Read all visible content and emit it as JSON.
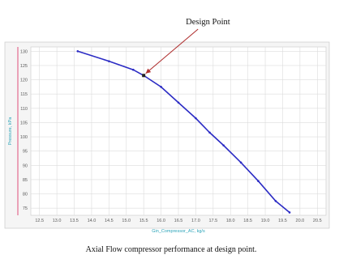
{
  "chart_data": {
    "type": "line",
    "title": "",
    "xlabel": "Gin_Compressor_AC, kg/s",
    "ylabel": "Pressure, kPa",
    "x_ticks": [
      "12.5",
      "13.0",
      "13.5",
      "14.0",
      "14.5",
      "15.0",
      "15.5",
      "16.0",
      "16.5",
      "17.0",
      "17.5",
      "18.0",
      "18.5",
      "19.0",
      "19.5",
      "20.0",
      "20.5"
    ],
    "y_ticks": [
      "75",
      "80",
      "85",
      "90",
      "95",
      "100",
      "105",
      "110",
      "115",
      "120",
      "125",
      "130"
    ],
    "xlim": [
      12.25,
      20.75
    ],
    "ylim": [
      72.5,
      131.5
    ],
    "grid": true,
    "legend": "none",
    "series": [
      {
        "color": "#2b2bc4",
        "points": [
          {
            "x": 13.6,
            "y": 130.0
          },
          {
            "x": 14.5,
            "y": 126.5
          },
          {
            "x": 15.2,
            "y": 123.5
          },
          {
            "x": 15.5,
            "y": 121.5
          },
          {
            "x": 16.0,
            "y": 117.5
          },
          {
            "x": 16.5,
            "y": 112.0
          },
          {
            "x": 17.0,
            "y": 106.5
          },
          {
            "x": 17.4,
            "y": 101.5
          },
          {
            "x": 17.8,
            "y": 97.0
          },
          {
            "x": 18.3,
            "y": 91.0
          },
          {
            "x": 18.8,
            "y": 84.5
          },
          {
            "x": 19.3,
            "y": 77.5
          },
          {
            "x": 19.7,
            "y": 73.5
          }
        ]
      }
    ],
    "annotations": [
      {
        "text": "Design Point",
        "x": 15.5,
        "y": 121.5,
        "arrow_color": "#b03030",
        "marker_color": "#222222"
      }
    ],
    "caption": "Axial Flow compressor performance at design point."
  }
}
